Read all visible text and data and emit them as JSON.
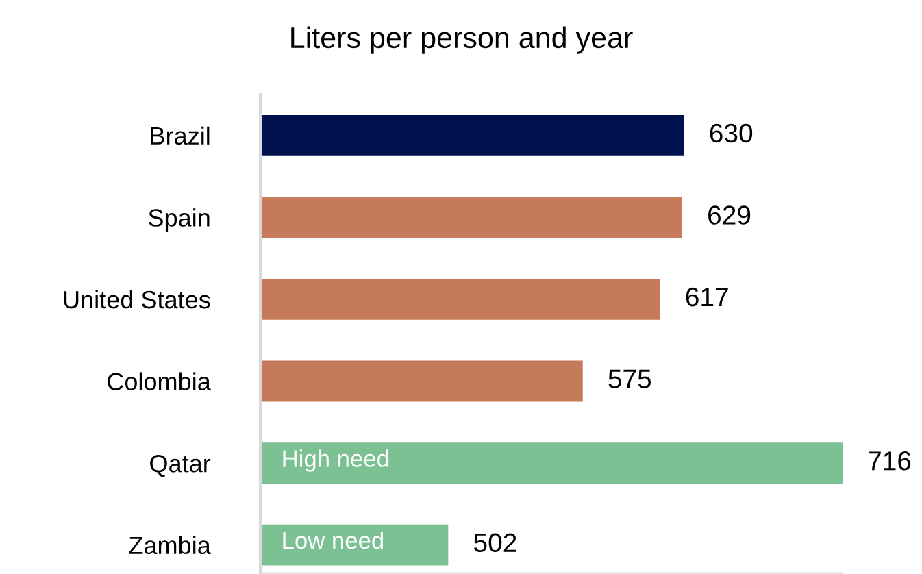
{
  "chart_data": {
    "type": "bar",
    "orientation": "horizontal",
    "title": "Liters per person and year",
    "categories": [
      "Brazil",
      "Spain",
      "United States",
      "Colombia",
      "Qatar",
      "Zambia"
    ],
    "values": [
      630,
      629,
      617,
      575,
      716,
      502
    ],
    "colors": [
      "#00114f",
      "#c57b59",
      "#c57b59",
      "#c57b59",
      "#7cc193",
      "#7cc193"
    ],
    "xlim": [
      400,
      716
    ],
    "tick_labels": "y",
    "data_labels": true,
    "grid": false,
    "legend": false,
    "annotations": [
      "High need",
      "Low need"
    ]
  }
}
